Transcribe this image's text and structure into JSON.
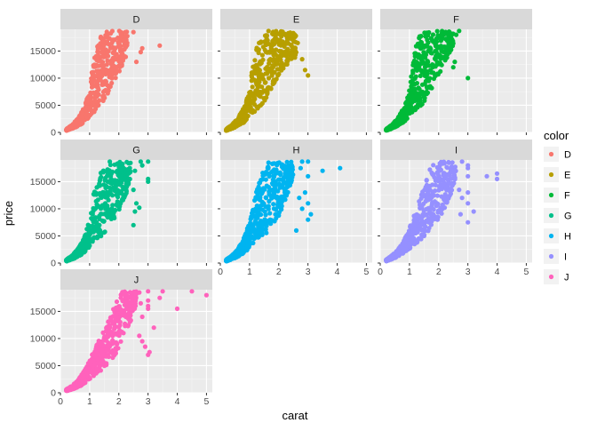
{
  "chart_data": {
    "type": "scatter",
    "facet_by": "color",
    "xlabel": "carat",
    "ylabel": "price",
    "xlim": [
      0,
      5.2
    ],
    "ylim": [
      0,
      19000
    ],
    "x_ticks": [
      0,
      1,
      2,
      3,
      4,
      5
    ],
    "y_ticks": [
      0,
      5000,
      10000,
      15000
    ],
    "y_tick_labels": [
      "0",
      "5000",
      "10000",
      "15000"
    ],
    "grid": true,
    "legend": {
      "title": "color",
      "position": "right",
      "entries": [
        "D",
        "E",
        "F",
        "G",
        "H",
        "I",
        "J"
      ]
    },
    "series": [
      {
        "name": "D",
        "color": "#F8766D",
        "band_lo": [
          [
            0.2,
            330
          ],
          [
            0.5,
            900
          ],
          [
            0.8,
            1800
          ],
          [
            1.0,
            2800
          ],
          [
            1.2,
            4000
          ],
          [
            1.5,
            6000
          ],
          [
            1.8,
            9000
          ],
          [
            2.0,
            11000
          ],
          [
            2.3,
            14500
          ]
        ],
        "band_hi": [
          [
            0.2,
            600
          ],
          [
            0.4,
            1400
          ],
          [
            0.6,
            2600
          ],
          [
            0.8,
            4500
          ],
          [
            1.0,
            8000
          ],
          [
            1.1,
            12000
          ],
          [
            1.2,
            15000
          ],
          [
            1.35,
            17500
          ],
          [
            1.6,
            18700
          ],
          [
            2.3,
            18700
          ]
        ],
        "points": [
          [
            2.6,
            13000
          ],
          [
            2.75,
            14800
          ],
          [
            3.4,
            16000
          ],
          [
            2.8,
            15500
          ],
          [
            2.5,
            18500
          ],
          [
            2.2,
            16500
          ]
        ]
      },
      {
        "name": "E",
        "color": "#B79F00",
        "band_lo": [
          [
            0.2,
            330
          ],
          [
            0.5,
            900
          ],
          [
            0.8,
            1800
          ],
          [
            1.0,
            2800
          ],
          [
            1.2,
            4000
          ],
          [
            1.5,
            5500
          ],
          [
            1.8,
            8500
          ],
          [
            2.0,
            10500
          ],
          [
            2.4,
            13000
          ],
          [
            2.6,
            14000
          ]
        ],
        "band_hi": [
          [
            0.2,
            600
          ],
          [
            0.4,
            1400
          ],
          [
            0.6,
            2600
          ],
          [
            0.8,
            4500
          ],
          [
            1.0,
            8000
          ],
          [
            1.1,
            12000
          ],
          [
            1.2,
            15000
          ],
          [
            1.4,
            17500
          ],
          [
            1.6,
            18700
          ],
          [
            2.6,
            18700
          ]
        ],
        "points": [
          [
            2.9,
            11500
          ],
          [
            3.0,
            10500
          ],
          [
            2.8,
            13500
          ],
          [
            2.65,
            16500
          ]
        ]
      },
      {
        "name": "F",
        "color": "#00BA38",
        "band_lo": [
          [
            0.2,
            330
          ],
          [
            0.5,
            900
          ],
          [
            0.8,
            1800
          ],
          [
            1.0,
            2800
          ],
          [
            1.2,
            4000
          ],
          [
            1.5,
            5500
          ],
          [
            1.8,
            8500
          ],
          [
            2.0,
            10000
          ],
          [
            2.3,
            14000
          ],
          [
            2.5,
            16000
          ]
        ],
        "band_hi": [
          [
            0.2,
            600
          ],
          [
            0.4,
            1400
          ],
          [
            0.6,
            2600
          ],
          [
            0.8,
            4500
          ],
          [
            1.0,
            8000
          ],
          [
            1.1,
            12000
          ],
          [
            1.2,
            15500
          ],
          [
            1.35,
            18000
          ],
          [
            1.6,
            18700
          ],
          [
            2.5,
            18700
          ]
        ],
        "points": [
          [
            2.6,
            18000
          ],
          [
            2.7,
            18700
          ],
          [
            2.55,
            13000
          ],
          [
            2.5,
            12000
          ],
          [
            3.0,
            10000
          ]
        ]
      },
      {
        "name": "G",
        "color": "#00C08B",
        "band_lo": [
          [
            0.2,
            330
          ],
          [
            0.5,
            900
          ],
          [
            0.8,
            1800
          ],
          [
            1.0,
            2800
          ],
          [
            1.2,
            4000
          ],
          [
            1.5,
            5500
          ],
          [
            1.8,
            7500
          ],
          [
            2.0,
            9500
          ],
          [
            2.2,
            12000
          ],
          [
            2.4,
            15000
          ]
        ],
        "band_hi": [
          [
            0.2,
            600
          ],
          [
            0.4,
            1400
          ],
          [
            0.6,
            2600
          ],
          [
            0.8,
            4500
          ],
          [
            1.0,
            8000
          ],
          [
            1.1,
            12000
          ],
          [
            1.2,
            14000
          ],
          [
            1.4,
            17000
          ],
          [
            1.6,
            18700
          ],
          [
            2.4,
            18700
          ]
        ],
        "points": [
          [
            2.6,
            11000
          ],
          [
            2.55,
            9500
          ],
          [
            2.7,
            10200
          ],
          [
            2.5,
            7000
          ],
          [
            2.5,
            13500
          ],
          [
            2.75,
            18700
          ],
          [
            3.0,
            18700
          ],
          [
            3.0,
            15500
          ],
          [
            3.0,
            15000
          ],
          [
            2.8,
            18000
          ],
          [
            2.55,
            17000
          ]
        ]
      },
      {
        "name": "H",
        "color": "#00B4F0",
        "band_lo": [
          [
            0.2,
            330
          ],
          [
            0.5,
            900
          ],
          [
            0.8,
            1800
          ],
          [
            1.0,
            2800
          ],
          [
            1.2,
            3800
          ],
          [
            1.5,
            5000
          ],
          [
            1.8,
            7000
          ],
          [
            2.0,
            8500
          ],
          [
            2.2,
            11000
          ],
          [
            2.4,
            14000
          ],
          [
            2.5,
            16500
          ]
        ],
        "band_hi": [
          [
            0.2,
            600
          ],
          [
            0.4,
            1400
          ],
          [
            0.6,
            2600
          ],
          [
            0.8,
            4500
          ],
          [
            1.0,
            7500
          ],
          [
            1.1,
            10000
          ],
          [
            1.2,
            12500
          ],
          [
            1.4,
            16000
          ],
          [
            1.6,
            18700
          ],
          [
            2.5,
            18700
          ]
        ],
        "points": [
          [
            2.8,
            18700
          ],
          [
            3.0,
            18700
          ],
          [
            3.0,
            16000
          ],
          [
            2.9,
            13000
          ],
          [
            2.7,
            12000
          ],
          [
            3.0,
            11000
          ],
          [
            3.1,
            9000
          ],
          [
            3.0,
            8000
          ],
          [
            2.6,
            6000
          ],
          [
            2.8,
            10000
          ],
          [
            3.5,
            17000
          ],
          [
            4.1,
            17500
          ],
          [
            2.75,
            17500
          ]
        ]
      },
      {
        "name": "I",
        "color": "#9590FF",
        "band_lo": [
          [
            0.2,
            330
          ],
          [
            0.5,
            900
          ],
          [
            0.8,
            1800
          ],
          [
            1.0,
            2600
          ],
          [
            1.2,
            3500
          ],
          [
            1.5,
            4800
          ],
          [
            1.8,
            6500
          ],
          [
            2.0,
            8000
          ],
          [
            2.2,
            10000
          ],
          [
            2.4,
            12500
          ],
          [
            2.6,
            15500
          ]
        ],
        "band_hi": [
          [
            0.2,
            600
          ],
          [
            0.4,
            1400
          ],
          [
            0.6,
            2400
          ],
          [
            0.8,
            4000
          ],
          [
            1.0,
            6500
          ],
          [
            1.2,
            9500
          ],
          [
            1.4,
            13000
          ],
          [
            1.6,
            16000
          ],
          [
            1.8,
            18700
          ],
          [
            2.6,
            18700
          ]
        ],
        "points": [
          [
            2.8,
            18700
          ],
          [
            3.0,
            18000
          ],
          [
            3.0,
            16000
          ],
          [
            2.7,
            13500
          ],
          [
            2.8,
            12000
          ],
          [
            3.0,
            13000
          ],
          [
            3.0,
            11000
          ],
          [
            2.75,
            9000
          ],
          [
            3.2,
            9500
          ],
          [
            3.0,
            7500
          ],
          [
            3.65,
            16000
          ],
          [
            4.0,
            16500
          ],
          [
            4.0,
            15500
          ],
          [
            3.0,
            17500
          ]
        ]
      },
      {
        "name": "J",
        "color": "#FF62BC",
        "band_lo": [
          [
            0.2,
            330
          ],
          [
            0.5,
            800
          ],
          [
            0.8,
            1600
          ],
          [
            1.0,
            2500
          ],
          [
            1.2,
            3300
          ],
          [
            1.5,
            4500
          ],
          [
            1.8,
            6500
          ],
          [
            2.0,
            8000
          ],
          [
            2.2,
            10500
          ],
          [
            2.4,
            13000
          ],
          [
            2.6,
            16000
          ]
        ],
        "band_hi": [
          [
            0.2,
            600
          ],
          [
            0.4,
            1300
          ],
          [
            0.6,
            2300
          ],
          [
            0.8,
            3900
          ],
          [
            1.0,
            6000
          ],
          [
            1.2,
            8500
          ],
          [
            1.5,
            11500
          ],
          [
            1.7,
            14000
          ],
          [
            1.9,
            17000
          ],
          [
            2.1,
            18700
          ],
          [
            2.6,
            18700
          ]
        ],
        "points": [
          [
            2.7,
            18500
          ],
          [
            3.0,
            18700
          ],
          [
            3.5,
            18700
          ],
          [
            3.0,
            17000
          ],
          [
            3.0,
            16000
          ],
          [
            3.0,
            15500
          ],
          [
            2.8,
            14000
          ],
          [
            2.7,
            10500
          ],
          [
            2.8,
            9500
          ],
          [
            2.9,
            8500
          ],
          [
            3.0,
            7000
          ],
          [
            3.05,
            7500
          ],
          [
            3.2,
            12000
          ],
          [
            4.0,
            15500
          ],
          [
            4.5,
            18700
          ],
          [
            5.0,
            18000
          ],
          [
            3.4,
            17500
          ],
          [
            2.75,
            16500
          ]
        ]
      }
    ]
  }
}
